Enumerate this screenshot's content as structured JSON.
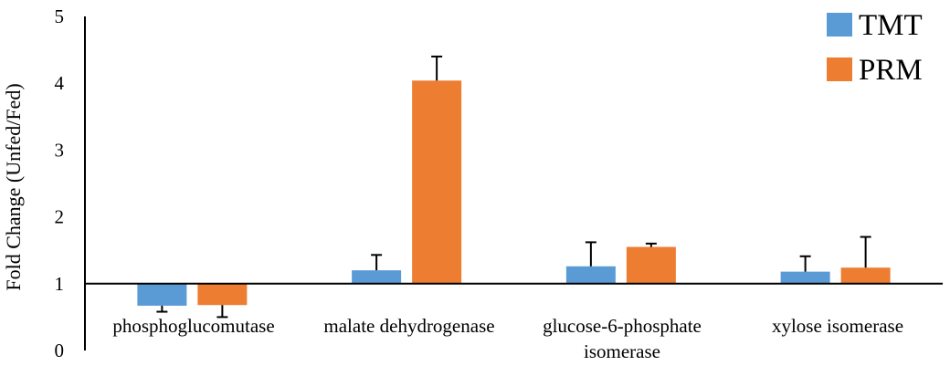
{
  "chart_data": {
    "type": "bar",
    "title": "",
    "xlabel": "",
    "ylabel": "Fold Change (Unfed/Fed)",
    "ylim": [
      0,
      5
    ],
    "yticks": [
      "0",
      "1",
      "2",
      "3",
      "4",
      "5"
    ],
    "baseline": 1,
    "grid": false,
    "legend_position": "top-right",
    "categories": [
      [
        "phosphoglucomutase"
      ],
      [
        "malate dehydrogenase"
      ],
      [
        "glucose-6-phosphate",
        "isomerase"
      ],
      [
        "xylose isomerase"
      ]
    ],
    "series": [
      {
        "name": "TMT",
        "color": "#5b9bd5",
        "values": [
          0.67,
          1.2,
          1.26,
          1.18
        ],
        "errors": [
          0.09,
          0.23,
          0.36,
          0.23
        ]
      },
      {
        "name": "PRM",
        "color": "#ed7d31",
        "values": [
          0.68,
          4.04,
          1.55,
          1.24
        ],
        "errors": [
          0.18,
          0.36,
          0.05,
          0.46
        ]
      }
    ]
  }
}
